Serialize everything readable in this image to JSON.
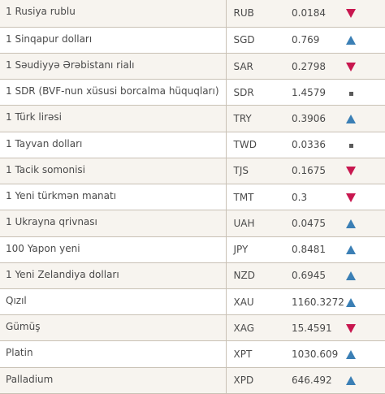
{
  "colors": {
    "up": "#3b7fb5",
    "down": "#c8174f",
    "flat": "#5a5a5a",
    "row_alt": "#f7f4ef",
    "border": "#c9c1b5"
  },
  "rows": [
    {
      "name": "1 Rusiya rublu",
      "code": "RUB",
      "value": "0.0184",
      "trend": "down"
    },
    {
      "name": "1 Sinqapur dolları",
      "code": "SGD",
      "value": "0.769",
      "trend": "up"
    },
    {
      "name": "1 Səudiyyə Ərəbistanı rialı",
      "code": "SAR",
      "value": "0.2798",
      "trend": "down"
    },
    {
      "name": "1 SDR (BVF-nun xüsusi borcalma hüquqları)",
      "code": "SDR",
      "value": "1.4579",
      "trend": "flat"
    },
    {
      "name": "1 Türk lirəsi",
      "code": "TRY",
      "value": "0.3906",
      "trend": "up"
    },
    {
      "name": "1 Tayvan dolları",
      "code": "TWD",
      "value": "0.0336",
      "trend": "flat"
    },
    {
      "name": "1 Tacik somonisi",
      "code": "TJS",
      "value": "0.1675",
      "trend": "down"
    },
    {
      "name": "1 Yeni türkmən manatı",
      "code": "TMT",
      "value": "0.3",
      "trend": "down"
    },
    {
      "name": "1 Ukrayna qrivnası",
      "code": "UAH",
      "value": "0.0475",
      "trend": "up"
    },
    {
      "name": "100 Yapon yeni",
      "code": "JPY",
      "value": "0.8481",
      "trend": "up"
    },
    {
      "name": "1 Yeni Zelandiya dolları",
      "code": "NZD",
      "value": "0.6945",
      "trend": "up"
    },
    {
      "name": "Qızıl",
      "code": "XAU",
      "value": "1160.3272",
      "trend": "up"
    },
    {
      "name": "Gümüş",
      "code": "XAG",
      "value": "15.4591",
      "trend": "down"
    },
    {
      "name": "Platin",
      "code": "XPT",
      "value": "1030.609",
      "trend": "up"
    },
    {
      "name": "Palladium",
      "code": "XPD",
      "value": "646.492",
      "trend": "up"
    }
  ]
}
